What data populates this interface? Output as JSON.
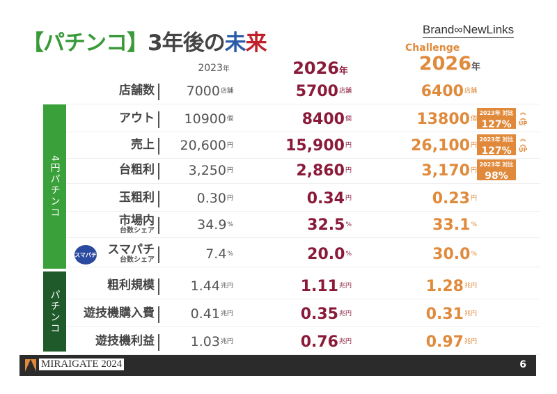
{
  "title": {
    "bracket": "【パチンコ】",
    "mid": "3年後の",
    "a": "未",
    "b": "来"
  },
  "brand": "Brand∞NewLinks",
  "headers": {
    "y2023": "2023",
    "y2026": "2026",
    "challenge": "Challenge",
    "ych": "2026",
    "nen": "年"
  },
  "sections": [
    "4円パチンコ",
    "パチンコ"
  ],
  "rows": [
    {
      "label": "店舗数",
      "v23": "7000",
      "v26": "5700",
      "vch": "6400",
      "unit": "店舗"
    },
    {
      "label": "アウト",
      "v23": "10900",
      "v26": "8400",
      "vch": "13800",
      "unit": "個",
      "badge": {
        "top": "2023年 対比",
        "value": "127%",
        "up": "UP"
      }
    },
    {
      "label": "売上",
      "v23": "20,600",
      "v26": "15,900",
      "vch": "26,100",
      "unit": "円",
      "badge": {
        "top": "2023年 対比",
        "value": "127%",
        "up": "UP"
      }
    },
    {
      "label": "台粗利",
      "v23": "3,250",
      "v26": "2,860",
      "vch": "3,170",
      "unit": "円",
      "badge": {
        "top": "2023年 対比",
        "value": "98%"
      }
    },
    {
      "label": "玉粗利",
      "v23": "0.30",
      "v26": "0.34",
      "vch": "0.23",
      "unit": "円"
    },
    {
      "label": "市場内",
      "sub": "台数シェア",
      "v23": "34.9",
      "v26": "32.5",
      "vch": "33.1",
      "unit": "%"
    },
    {
      "label": "スマパチ",
      "sub": "台数シェア",
      "v23": "7.4",
      "v26": "20.0",
      "vch": "30.0",
      "unit": "%",
      "logo": "スマパチ"
    },
    {
      "label": "粗利規模",
      "v23": "1.44",
      "v26": "1.11",
      "vch": "1.28",
      "unit": "兆円"
    },
    {
      "label": "遊技機購入費",
      "v23": "0.41",
      "v26": "0.35",
      "vch": "0.31",
      "unit": "兆円"
    },
    {
      "label": "遊技機利益",
      "v23": "1.03",
      "v26": "0.76",
      "vch": "0.97",
      "unit": "兆円"
    }
  ],
  "footer": {
    "brand": "MIRAIGATE 2024",
    "page": "6"
  },
  "colors": {
    "green": "#3aa03a",
    "dark_green": "#1f5a2a",
    "maroon": "#8a1a3a",
    "orange": "#e0893a"
  }
}
